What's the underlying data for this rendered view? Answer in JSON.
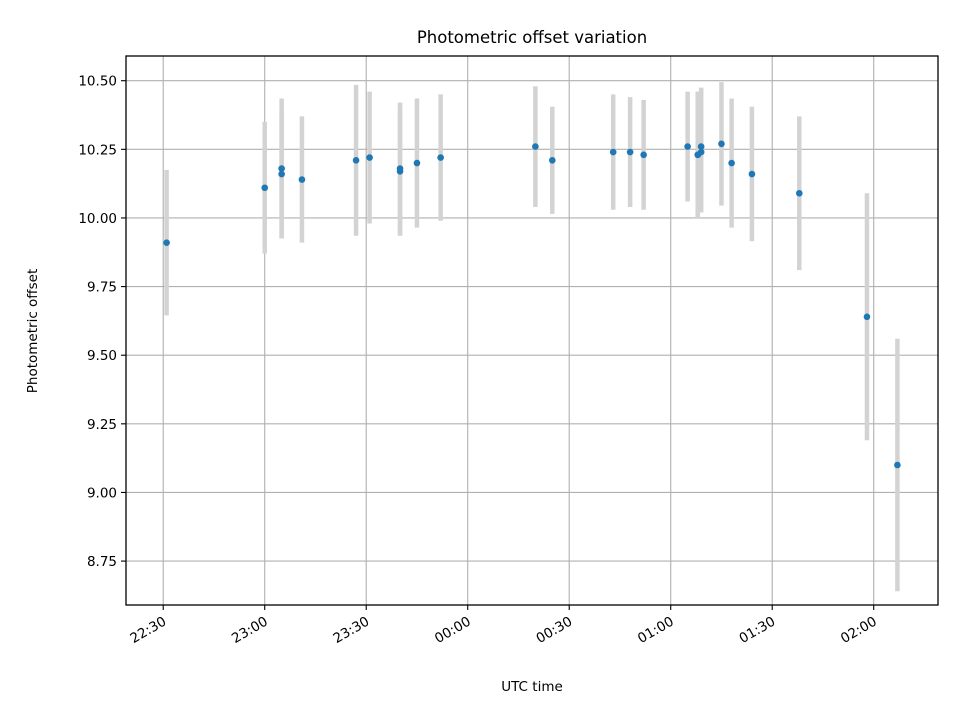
{
  "chart_data": {
    "type": "scatter",
    "title": "Photometric offset variation",
    "xlabel": "UTC time",
    "ylabel": "Photometric offset",
    "x_unit": "time (HH:MM, UTC)",
    "xlim": [
      "22:19",
      "02:19"
    ],
    "ylim": [
      8.59,
      10.59
    ],
    "x_ticks": [
      "22:30",
      "23:00",
      "23:30",
      "00:00",
      "00:30",
      "01:00",
      "01:30",
      "02:00"
    ],
    "y_ticks": [
      "8.75",
      "9.00",
      "9.25",
      "9.50",
      "9.75",
      "10.00",
      "10.25",
      "10.50"
    ],
    "grid": true,
    "colors": {
      "marker": "#1f77b4",
      "errorbar": "#d3d3d3",
      "grid": "#b0b0b0"
    },
    "series": [
      {
        "points": [
          {
            "x": "22:31",
            "y": 9.91,
            "err": 0.265
          },
          {
            "x": "23:00",
            "y": 10.11,
            "err": 0.24
          },
          {
            "x": "23:05",
            "y": 10.16,
            "err": 0.235
          },
          {
            "x": "23:05",
            "y": 10.18,
            "err": 0.255
          },
          {
            "x": "23:11",
            "y": 10.14,
            "err": 0.23
          },
          {
            "x": "23:27",
            "y": 10.21,
            "err": 0.275
          },
          {
            "x": "23:31",
            "y": 10.22,
            "err": 0.24
          },
          {
            "x": "23:40",
            "y": 10.17,
            "err": 0.235
          },
          {
            "x": "23:40",
            "y": 10.18,
            "err": 0.24
          },
          {
            "x": "23:45",
            "y": 10.2,
            "err": 0.235
          },
          {
            "x": "23:52",
            "y": 10.22,
            "err": 0.23
          },
          {
            "x": "00:20",
            "y": 10.26,
            "err": 0.22
          },
          {
            "x": "00:25",
            "y": 10.21,
            "err": 0.195
          },
          {
            "x": "00:43",
            "y": 10.24,
            "err": 0.21
          },
          {
            "x": "00:48",
            "y": 10.24,
            "err": 0.2
          },
          {
            "x": "00:52",
            "y": 10.23,
            "err": 0.2
          },
          {
            "x": "01:05",
            "y": 10.26,
            "err": 0.2
          },
          {
            "x": "01:08",
            "y": 10.23,
            "err": 0.23
          },
          {
            "x": "01:08",
            "y": 10.23,
            "err": 0.23
          },
          {
            "x": "01:09",
            "y": 10.26,
            "err": 0.215
          },
          {
            "x": "01:09",
            "y": 10.24,
            "err": 0.22
          },
          {
            "x": "01:15",
            "y": 10.27,
            "err": 0.225
          },
          {
            "x": "01:18",
            "y": 10.2,
            "err": 0.235
          },
          {
            "x": "01:24",
            "y": 10.16,
            "err": 0.245
          },
          {
            "x": "01:38",
            "y": 10.09,
            "err": 0.28
          },
          {
            "x": "01:58",
            "y": 9.64,
            "err": 0.45
          },
          {
            "x": "02:07",
            "y": 9.1,
            "err": 0.46
          }
        ]
      }
    ]
  }
}
